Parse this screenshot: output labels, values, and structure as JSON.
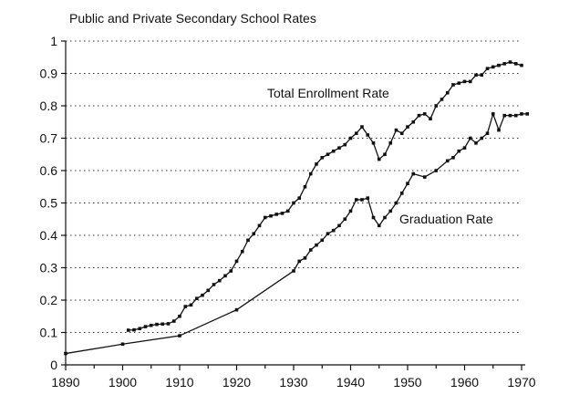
{
  "chart_data": {
    "type": "line",
    "title": "Public and Private Secondary School Rates",
    "xlabel": "",
    "ylabel": "",
    "xlim": [
      1890,
      1970
    ],
    "ylim": [
      0,
      1
    ],
    "grid": true,
    "x_ticks": [
      "1890",
      "1900",
      "1910",
      "1920",
      "1930",
      "1940",
      "1950",
      "1960",
      "1970"
    ],
    "y_ticks": [
      "0",
      "0.1",
      "0.2",
      "0.3",
      "0.4",
      "0.5",
      "0.6",
      "0.7",
      "0.8",
      "0.9",
      "1"
    ],
    "series": [
      {
        "name": "Total Enrollment Rate",
        "color": "#111111",
        "points": [
          [
            1901,
            0.107
          ],
          [
            1902,
            0.108
          ],
          [
            1903,
            0.112
          ],
          [
            1904,
            0.118
          ],
          [
            1905,
            0.122
          ],
          [
            1906,
            0.125
          ],
          [
            1907,
            0.126
          ],
          [
            1908,
            0.127
          ],
          [
            1909,
            0.135
          ],
          [
            1910,
            0.15
          ],
          [
            1911,
            0.18
          ],
          [
            1912,
            0.185
          ],
          [
            1913,
            0.205
          ],
          [
            1914,
            0.215
          ],
          [
            1915,
            0.23
          ],
          [
            1916,
            0.248
          ],
          [
            1917,
            0.26
          ],
          [
            1918,
            0.275
          ],
          [
            1919,
            0.29
          ],
          [
            1920,
            0.32
          ],
          [
            1921,
            0.35
          ],
          [
            1922,
            0.385
          ],
          [
            1923,
            0.405
          ],
          [
            1924,
            0.43
          ],
          [
            1925,
            0.455
          ],
          [
            1926,
            0.46
          ],
          [
            1927,
            0.465
          ],
          [
            1928,
            0.468
          ],
          [
            1929,
            0.475
          ],
          [
            1930,
            0.5
          ],
          [
            1931,
            0.515
          ],
          [
            1932,
            0.55
          ],
          [
            1933,
            0.59
          ],
          [
            1934,
            0.62
          ],
          [
            1935,
            0.64
          ],
          [
            1936,
            0.65
          ],
          [
            1937,
            0.66
          ],
          [
            1938,
            0.67
          ],
          [
            1939,
            0.68
          ],
          [
            1940,
            0.7
          ],
          [
            1941,
            0.715
          ],
          [
            1942,
            0.735
          ],
          [
            1943,
            0.71
          ],
          [
            1944,
            0.685
          ],
          [
            1945,
            0.635
          ],
          [
            1946,
            0.65
          ],
          [
            1947,
            0.685
          ],
          [
            1948,
            0.725
          ],
          [
            1949,
            0.715
          ],
          [
            1950,
            0.735
          ],
          [
            1951,
            0.75
          ],
          [
            1952,
            0.77
          ],
          [
            1953,
            0.775
          ],
          [
            1954,
            0.76
          ],
          [
            1955,
            0.8
          ],
          [
            1956,
            0.82
          ],
          [
            1957,
            0.84
          ],
          [
            1958,
            0.865
          ],
          [
            1959,
            0.87
          ],
          [
            1960,
            0.875
          ],
          [
            1961,
            0.875
          ],
          [
            1962,
            0.895
          ],
          [
            1963,
            0.895
          ],
          [
            1964,
            0.915
          ],
          [
            1965,
            0.92
          ],
          [
            1966,
            0.925
          ],
          [
            1967,
            0.93
          ],
          [
            1968,
            0.935
          ],
          [
            1969,
            0.93
          ],
          [
            1970,
            0.925
          ]
        ]
      },
      {
        "name": "Graduation Rate",
        "color": "#111111",
        "points": [
          [
            1890,
            0.035
          ],
          [
            1900,
            0.064
          ],
          [
            1910,
            0.09
          ],
          [
            1920,
            0.17
          ],
          [
            1930,
            0.29
          ],
          [
            1931,
            0.32
          ],
          [
            1932,
            0.33
          ],
          [
            1933,
            0.355
          ],
          [
            1934,
            0.37
          ],
          [
            1935,
            0.385
          ],
          [
            1936,
            0.405
          ],
          [
            1937,
            0.415
          ],
          [
            1938,
            0.43
          ],
          [
            1939,
            0.45
          ],
          [
            1940,
            0.475
          ],
          [
            1941,
            0.51
          ],
          [
            1942,
            0.51
          ],
          [
            1943,
            0.515
          ],
          [
            1944,
            0.455
          ],
          [
            1945,
            0.43
          ],
          [
            1946,
            0.455
          ],
          [
            1947,
            0.475
          ],
          [
            1948,
            0.5
          ],
          [
            1949,
            0.53
          ],
          [
            1950,
            0.56
          ],
          [
            1951,
            0.59
          ],
          [
            1953,
            0.58
          ],
          [
            1955,
            0.6
          ],
          [
            1957,
            0.63
          ],
          [
            1958,
            0.64
          ],
          [
            1959,
            0.66
          ],
          [
            1960,
            0.67
          ],
          [
            1961,
            0.7
          ],
          [
            1962,
            0.685
          ],
          [
            1963,
            0.7
          ],
          [
            1964,
            0.715
          ],
          [
            1965,
            0.775
          ],
          [
            1966,
            0.725
          ],
          [
            1967,
            0.77
          ],
          [
            1968,
            0.77
          ],
          [
            1969,
            0.77
          ],
          [
            1970,
            0.775
          ],
          [
            1971,
            0.775
          ]
        ]
      }
    ]
  }
}
